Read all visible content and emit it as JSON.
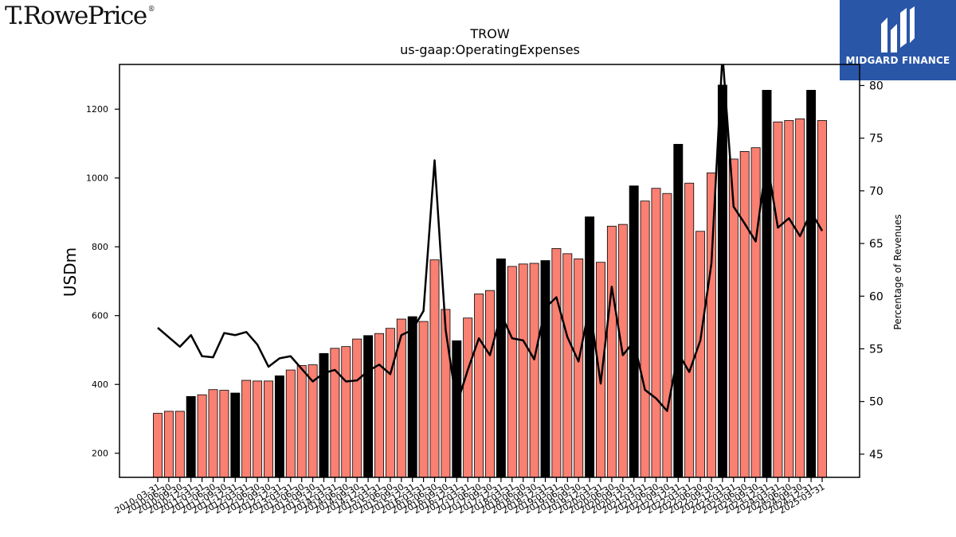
{
  "branding": {
    "left_logo": "T.RowePrice",
    "left_logo_mark": "®",
    "right_logo": "MIDGARD FINANCE",
    "right_logo_icon": "midgard-m-icon"
  },
  "chart_data": {
    "type": "bar",
    "title": "TROW",
    "subtitle": "us-gaap:OperatingExpenses",
    "ylabel": "USDm",
    "y2label": "Percentage of Revenues",
    "ylim": [
      130,
      1330
    ],
    "y2lim": [
      42.8,
      82.0
    ],
    "yticks": [
      200,
      400,
      600,
      800,
      1000,
      1200
    ],
    "y2ticks": [
      45,
      50,
      55,
      60,
      65,
      70,
      75,
      80
    ],
    "grid": false,
    "colors": {
      "quarterly": "#fa8072",
      "annual": "#000000",
      "line": "#000000"
    },
    "categories": [
      "2010-03-31",
      "2010-06-30",
      "2010-09-30",
      "2010-12-31",
      "2011-03-31",
      "2011-06-30",
      "2011-09-30",
      "2011-12-31",
      "2012-03-31",
      "2012-06-30",
      "2012-09-30",
      "2012-12-31",
      "2013-03-31",
      "2013-06-30",
      "2013-09-30",
      "2013-12-31",
      "2014-03-31",
      "2014-06-30",
      "2014-09-30",
      "2014-12-31",
      "2015-03-31",
      "2015-06-30",
      "2015-09-30",
      "2015-12-31",
      "2016-03-31",
      "2016-06-30",
      "2016-09-30",
      "2016-12-31",
      "2017-03-31",
      "2017-06-30",
      "2017-09-30",
      "2017-12-31",
      "2018-03-31",
      "2018-06-30",
      "2018-09-30",
      "2018-12-31",
      "2019-03-31",
      "2019-06-30",
      "2019-09-30",
      "2019-12-31",
      "2020-03-31",
      "2020-06-30",
      "2020-09-30",
      "2020-12-31",
      "2021-03-31",
      "2021-06-30",
      "2021-09-30",
      "2021-12-31",
      "2022-03-31",
      "2022-06-30",
      "2022-09-30",
      "2022-12-31",
      "2023-03-31",
      "2023-06-30",
      "2023-09-30",
      "2023-12-31",
      "2024-03-31",
      "2024-06-30",
      "2024-09-30",
      "2024-12-31",
      "2025-03-31"
    ],
    "xtick_labels": [
      "2010-03-31",
      "2010-06-30",
      "2010-09-30",
      "2010-12-31",
      "2011-03-31",
      "2011-06-30",
      "2011-09-30",
      "2011-12-31",
      "2012-03-31",
      "2012-06-30",
      "2012-09-30",
      "2012-12-31",
      "2013-03-31",
      "2013-06-30",
      "2013-09-30",
      "2013-12-31",
      "2014-03-31",
      "2014-06-30",
      "2014-09-30",
      "2014-12-31",
      "2015-03-31",
      "2015-06-30",
      "2015-09-30",
      "2015-12-31",
      "2016-03-31",
      "2016-06-30",
      "2016-09-30",
      "2016-12-31",
      "2017-03-31",
      "2017-06-30",
      "2017-09-30",
      "2017-12-31",
      "2018-03-31",
      "2018-06-30",
      "2018-09-30",
      "2018-12-31",
      "2019-03-31",
      "2019-06-30",
      "2019-09-30",
      "2019-12-31",
      "2020-03-31",
      "2020-06-30",
      "2020-09-30",
      "2020-12-31",
      "2021-03-31",
      "2021-06-30",
      "2021-09-30",
      "2021-12-31",
      "2022-03-31",
      "2022-06-30",
      "2022-09-30",
      "2022-12-31",
      "2023-03-31",
      "2023-06-30",
      "2023-09-30",
      "2023-12-31",
      "2024-03-31",
      "2024-06-30",
      "2024-09-30",
      "2024-12-31",
      "2025-03-31"
    ],
    "bar_kind": [
      "q",
      "q",
      "q",
      "a",
      "q",
      "q",
      "q",
      "a",
      "q",
      "q",
      "q",
      "a",
      "q",
      "q",
      "q",
      "a",
      "q",
      "q",
      "q",
      "a",
      "q",
      "q",
      "q",
      "a",
      "q",
      "q",
      "q",
      "a",
      "q",
      "q",
      "q",
      "a",
      "q",
      "q",
      "q",
      "a",
      "q",
      "q",
      "q",
      "a",
      "q",
      "q",
      "q",
      "a",
      "q",
      "q",
      "q",
      "a",
      "q",
      "q",
      "q",
      "a",
      "q",
      "q",
      "q",
      "a",
      "q",
      "q",
      "q",
      "a",
      "q"
    ],
    "values": [
      316,
      322,
      322,
      365,
      370,
      385,
      383,
      375,
      412,
      410,
      410,
      425,
      442,
      455,
      457,
      490,
      505,
      510,
      532,
      542,
      548,
      563,
      590,
      597,
      583,
      762,
      618,
      527,
      593,
      663,
      673,
      765,
      743,
      750,
      752,
      760,
      795,
      780,
      765,
      887,
      755,
      860,
      865,
      977,
      933,
      970,
      955,
      1098,
      985,
      845,
      1015,
      1270,
      1055,
      1077,
      1088,
      1255,
      1163,
      1167,
      1172,
      1255,
      1167
    ],
    "bar_display_note": "",
    "line_values": [
      57.0,
      56.1,
      55.2,
      56.3,
      54.3,
      54.2,
      56.5,
      56.3,
      56.6,
      55.4,
      53.3,
      54.1,
      54.3,
      53.1,
      51.9,
      52.7,
      53.0,
      51.9,
      52.0,
      52.9,
      53.5,
      52.6,
      56.3,
      56.8,
      58.6,
      72.9,
      56.8,
      49.7,
      53.0,
      56.0,
      54.4,
      58.3,
      56.0,
      55.8,
      54.0,
      58.9,
      59.9,
      56.1,
      53.8,
      59.1,
      51.7,
      60.9,
      54.4,
      55.7,
      51.1,
      50.3,
      49.1,
      54.6,
      52.8,
      55.8,
      63.1,
      83.0,
      68.5,
      66.9,
      65.2,
      73.0,
      66.5,
      67.4,
      65.7,
      68.0,
      66.2
    ]
  }
}
